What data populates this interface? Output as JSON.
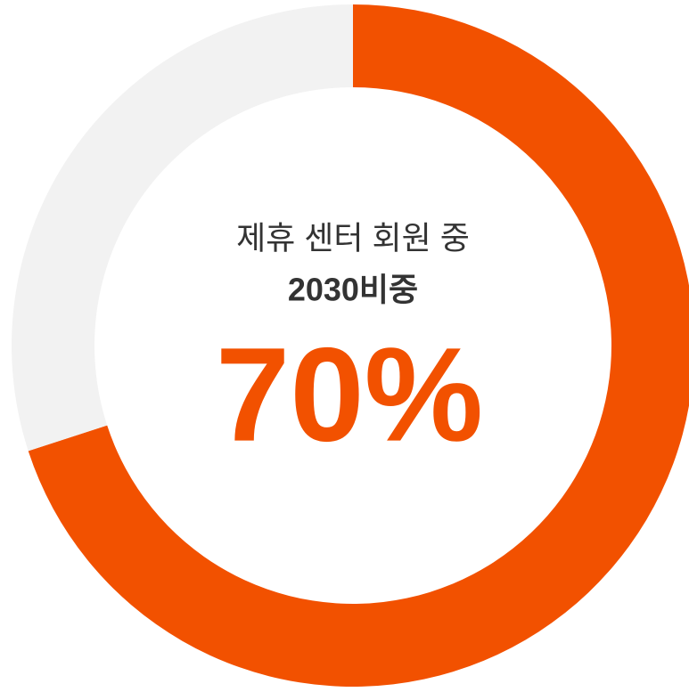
{
  "chart_data": {
    "type": "donut",
    "title": "제휴 센터 회원 중",
    "subtitle": "2030비중",
    "categories": [
      null,
      null
    ],
    "values": [
      70,
      30
    ],
    "value_labels": [
      "70%",
      null
    ],
    "colors": [
      "#f25100",
      "#f2f2f2"
    ]
  }
}
